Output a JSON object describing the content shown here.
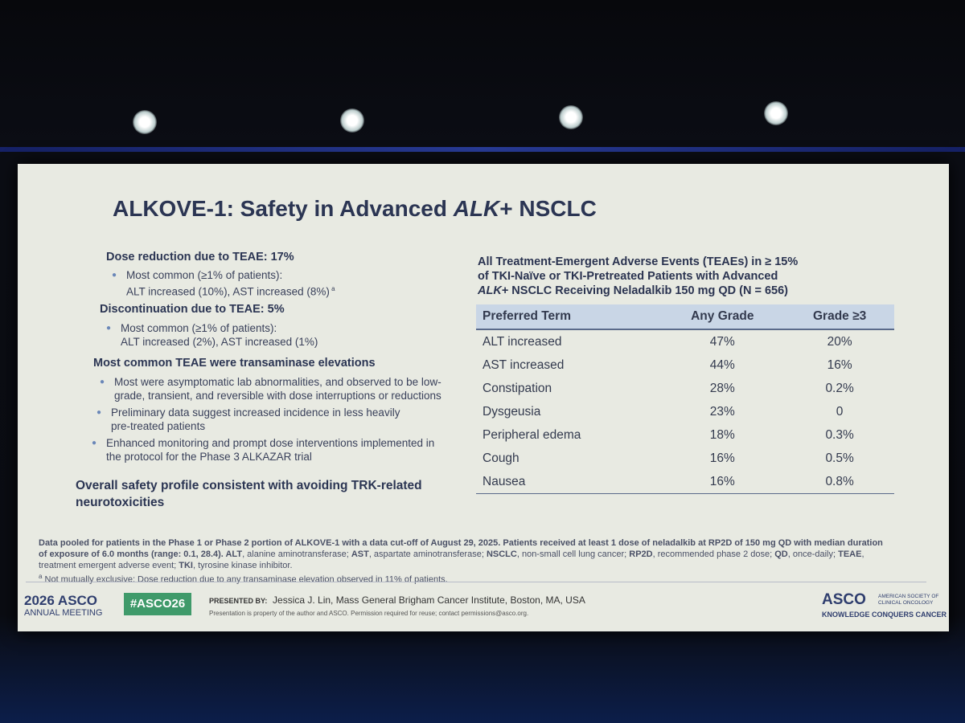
{
  "slide": {
    "title": [
      "ALKOVE-1: Safety in Advanced ",
      "ALK",
      "+ NSCLC"
    ],
    "sections": [
      {
        "heading": "Dose reduction due to TEAE: 17%",
        "bullets": [
          [
            "Most common (≥1% of patients):",
            "ALT increased (10%), AST increased (8%)"
          ]
        ],
        "note_mark": "a"
      },
      {
        "heading": "Discontinuation due to TEAE: 5%",
        "bullets": [
          [
            "Most common (≥1% of patients):",
            "ALT increased (2%), AST increased (1%)"
          ]
        ]
      },
      {
        "heading": "Most common TEAE were transaminase elevations",
        "bullets": [
          [
            "Most were asymptomatic lab abnormalities, and observed to be low-",
            "grade, transient, and reversible with dose interruptions or reductions"
          ],
          [
            "Preliminary data suggest increased incidence in less heavily",
            "pre-treated patients"
          ],
          [
            "Enhanced monitoring and prompt dose interventions implemented in",
            "the protocol for the Phase 3 ALKAZAR trial"
          ]
        ]
      },
      {
        "heading": "Overall safety profile consistent with avoiding TRK-related neurotoxicities",
        "bullets": []
      }
    ],
    "table_caption": [
      "All Treatment-Emergent Adverse Events (TEAEs) in ≥ 15%",
      "of TKI-Naïve or TKI-Pretreated Patients with Advanced",
      "ALK",
      "+ NSCLC Receiving Neladalkib 150 mg QD (N = 656)"
    ],
    "table": {
      "header": [
        "Preferred Term",
        "Any Grade",
        "Grade ≥3"
      ],
      "rows": [
        [
          "ALT increased",
          "47%",
          "20%"
        ],
        [
          "AST increased",
          "44%",
          "16%"
        ],
        [
          "Constipation",
          "28%",
          "0.2%"
        ],
        [
          "Dysgeusia",
          "23%",
          "0"
        ],
        [
          "Peripheral edema",
          "18%",
          "0.3%"
        ],
        [
          "Cough",
          "16%",
          "0.5%"
        ],
        [
          "Nausea",
          "16%",
          "0.8%"
        ]
      ]
    },
    "footnote": {
      "lead": "Data pooled for patients in the Phase 1 or Phase 2 portion of ALKOVE-1 with a data cut-off of August 29, 2025. Patients received at least 1 dose of neladalkib at RP2D of 150 mg QD with median duration of exposure of 6.0 months (range: 0.1, 28.4). ",
      "abbreviations": [
        [
          "ALT",
          ", alanine aminotransferase; "
        ],
        [
          "AST",
          ", aspartate aminotransferase; "
        ],
        [
          "NSCLC",
          ", non-small cell lung cancer; "
        ],
        [
          "RP2D",
          ", recommended phase 2 dose; "
        ],
        [
          "QD",
          ", once-daily; "
        ],
        [
          "TEAE",
          ", treatment emergent adverse event; "
        ],
        [
          "TKI",
          ", tyrosine kinase inhibitor."
        ]
      ],
      "note_mark": "a",
      "note": " Not mutually exclusive: Dose reduction due to any transaminase elevation observed in 11% of patients."
    },
    "footer": {
      "meeting_year": "2026 ASCO",
      "meeting_name": "ANNUAL MEETING",
      "hashtag": "#ASCO26",
      "presented_by_label": "PRESENTED BY:",
      "presenter": "Jessica J. Lin, Mass General Brigham Cancer Institute, Boston, MA, USA",
      "disclaimer": "Presentation is property of the author and ASCO. Permission required for reuse; contact permissions@asco.org.",
      "logo": "ASCO",
      "society": "AMERICAN SOCIETY OF CLINICAL ONCOLOGY",
      "tagline": "KNOWLEDGE CONQUERS CANCER"
    }
  }
}
